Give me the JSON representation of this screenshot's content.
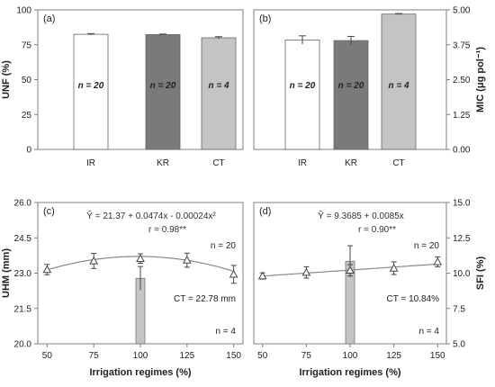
{
  "chart_data": [
    {
      "panel": "(a)",
      "type": "bar",
      "categories": [
        "IR",
        "KR",
        "CT"
      ],
      "values": [
        82.5,
        82.3,
        80.0
      ],
      "errors": [
        0.5,
        0.4,
        0.8
      ],
      "bar_labels": [
        "n = 20",
        "n = 20",
        "n = 4"
      ],
      "colors": [
        "#ffffff",
        "#7a7a7a",
        "#c4c4c4"
      ],
      "ylabel": "UNF (%)",
      "ylim": [
        0,
        100
      ],
      "yticks": [
        "0",
        "25",
        "50",
        "75",
        "100"
      ],
      "ytick_values": [
        0,
        25,
        50,
        75,
        100
      ],
      "y_axis_side": "left"
    },
    {
      "panel": "(b)",
      "type": "bar",
      "categories": [
        "IR",
        "KR",
        "CT"
      ],
      "values": [
        3.92,
        3.9,
        4.85
      ],
      "errors": [
        0.15,
        0.15,
        0.02
      ],
      "bar_labels": [
        "n = 20",
        "n = 20",
        "n = 4"
      ],
      "colors": [
        "#ffffff",
        "#7a7a7a",
        "#c4c4c4"
      ],
      "ylabel": "MIC (μg pol⁻¹)",
      "ylim": [
        0,
        5
      ],
      "yticks": [
        "0.00",
        "1.25",
        "2.50",
        "3.75",
        "5.00"
      ],
      "ytick_values": [
        0,
        1.25,
        2.5,
        3.75,
        5
      ],
      "y_axis_side": "right"
    },
    {
      "panel": "(c)",
      "type": "scatter",
      "x": [
        50,
        75,
        100,
        125,
        150
      ],
      "y": [
        23.15,
        23.52,
        23.62,
        23.55,
        22.95
      ],
      "errors": [
        0.22,
        0.32,
        0.2,
        0.3,
        0.38
      ],
      "fit": {
        "a": 21.37,
        "b": 0.0474,
        "c": -0.00024
      },
      "equation": "Ŷ = 21.37 + 0.0474x - 0.00024x²",
      "r_text": "r = 0.98**",
      "n_text": "n = 20",
      "ct_bar": {
        "x": 100,
        "value": 22.78,
        "error": 0.5
      },
      "ct_text": "CT = 22.78 mm",
      "ct_n_text": "n = 4",
      "xlabel": "Irrigation regimes (%)",
      "ylabel": "UHM (mm)",
      "xlim": [
        45,
        155
      ],
      "ylim": [
        20,
        26
      ],
      "xticks": [
        "50",
        "75",
        "100",
        "125",
        "150"
      ],
      "xtick_values": [
        50,
        75,
        100,
        125,
        150
      ],
      "yticks": [
        "20.0",
        "21.5",
        "23.0",
        "24.5",
        "26.0"
      ],
      "ytick_values": [
        20,
        21.5,
        23,
        24.5,
        26
      ],
      "y_axis_side": "left"
    },
    {
      "panel": "(d)",
      "type": "scatter",
      "x": [
        50,
        75,
        100,
        125,
        150
      ],
      "y": [
        9.8,
        10.05,
        10.2,
        10.35,
        10.8
      ],
      "errors": [
        0.22,
        0.4,
        0.4,
        0.45,
        0.35
      ],
      "fit": {
        "a": 9.3685,
        "b": 0.0085,
        "c": 0
      },
      "equation": "Ŷ = 9.3685 + 0.0085x",
      "r_text": "r = 0.90**",
      "n_text": "n = 20",
      "ct_bar": {
        "x": 100,
        "value": 10.84,
        "error": 1.1
      },
      "ct_text": "CT = 10.84%",
      "ct_n_text": "n = 4",
      "xlabel": "Irrigation regimes (%)",
      "ylabel": "SFI (%)",
      "xlim": [
        45,
        155
      ],
      "ylim": [
        5,
        15
      ],
      "xticks": [
        "50",
        "75",
        "100",
        "125",
        "150"
      ],
      "xtick_values": [
        50,
        75,
        100,
        125,
        150
      ],
      "yticks": [
        "5.0",
        "7.5",
        "10.0",
        "12.5",
        "15.0"
      ],
      "ytick_values": [
        5,
        7.5,
        10,
        12.5,
        15
      ],
      "y_axis_side": "right"
    }
  ]
}
